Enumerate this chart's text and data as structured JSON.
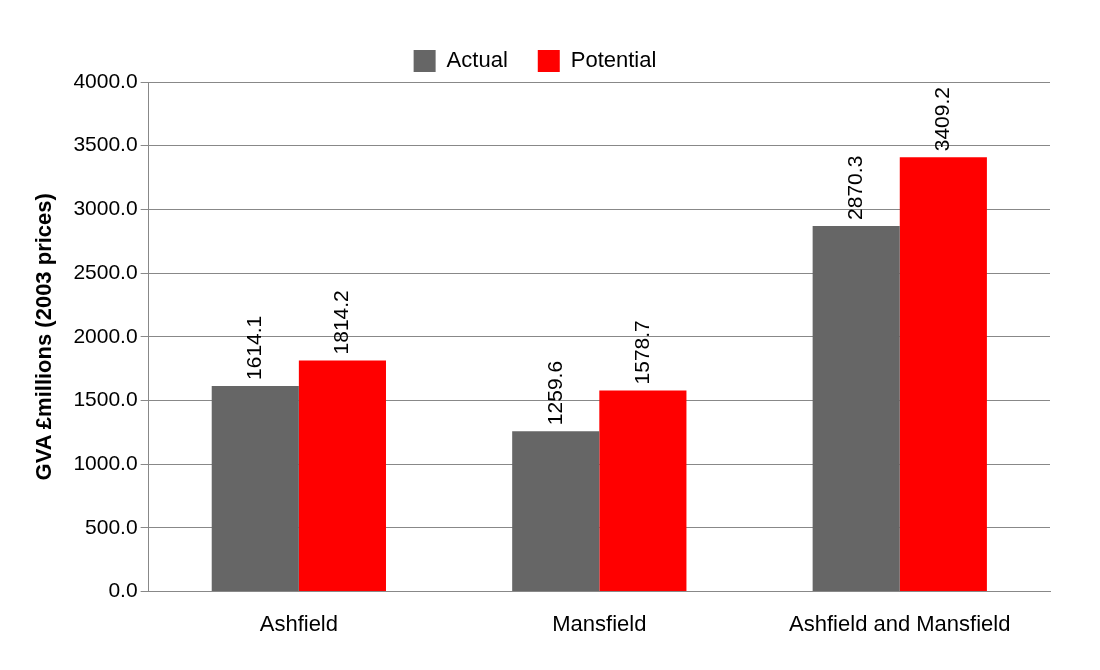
{
  "chart_data": {
    "type": "bar",
    "ylabel": "GVA £millions (2003 prices)",
    "categories": [
      "Ashfield",
      "Mansfield",
      "Ashfield and Mansfield"
    ],
    "series": [
      {
        "name": "Actual",
        "color": "#666666",
        "values": [
          1614.1,
          1259.6,
          2870.3
        ]
      },
      {
        "name": "Potential",
        "color": "#ff0000",
        "values": [
          1814.2,
          1578.7,
          3409.2
        ]
      }
    ],
    "ylim": [
      0,
      4000
    ],
    "yticks": [
      {
        "value": 0,
        "label": "0.0"
      },
      {
        "value": 500,
        "label": "500.0"
      },
      {
        "value": 1000,
        "label": "1000.0"
      },
      {
        "value": 1500,
        "label": "1500.0"
      },
      {
        "value": 2000,
        "label": "2000.0"
      },
      {
        "value": 2500,
        "label": "2500.0"
      },
      {
        "value": 3000,
        "label": "3000.0"
      },
      {
        "value": 3500,
        "label": "3500.0"
      },
      {
        "value": 4000,
        "label": "4000.0"
      }
    ],
    "grid": "y",
    "legend": "top",
    "data_labels": true
  }
}
